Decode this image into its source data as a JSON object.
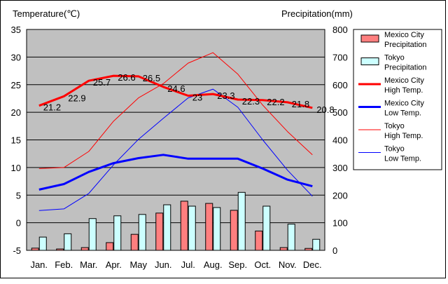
{
  "chart_data": {
    "type": "bar+line",
    "left_axis_title": "Temperature(℃)",
    "right_axis_title": "Precipitation(mm)",
    "categories": [
      "Jan.",
      "Feb.",
      "Mar.",
      "Apr.",
      "May",
      "Jun.",
      "Jul.",
      "Aug.",
      "Sep.",
      "Oct.",
      "Nov.",
      "Dec."
    ],
    "left_ylim": [
      -5,
      35
    ],
    "left_ticks": [
      "35",
      "30",
      "25",
      "20",
      "15",
      "10",
      "5",
      "0",
      "-5"
    ],
    "right_ylim": [
      0,
      800
    ],
    "right_ticks": [
      "800",
      "700",
      "600",
      "500",
      "400",
      "300",
      "200",
      "100",
      "0"
    ],
    "grid": true,
    "legend_position": "right",
    "bar_series": [
      {
        "name": "Mexico City Precipitation",
        "name_lines": [
          "Mexico City",
          "Precipitation"
        ],
        "color": "#ff7f7f",
        "values": [
          8,
          5,
          10,
          28,
          58,
          135,
          178,
          170,
          145,
          70,
          10,
          7
        ]
      },
      {
        "name": "Tokyo Precipitation",
        "name_lines": [
          "Tokyo",
          "Precipitation"
        ],
        "color": "#ccffff",
        "values": [
          48,
          60,
          115,
          125,
          130,
          165,
          160,
          155,
          210,
          160,
          95,
          40
        ]
      }
    ],
    "line_series": [
      {
        "name": "Mexico City High Temp.",
        "name_lines": [
          "Mexico City",
          "High Temp."
        ],
        "color": "#ff0000",
        "width": 3,
        "values": [
          21.2,
          22.9,
          25.7,
          26.6,
          26.5,
          24.6,
          23.0,
          23.3,
          22.3,
          22.2,
          21.8,
          20.8
        ],
        "labels": [
          "21.2",
          "22.9",
          "25.7",
          "26.6",
          "26.5",
          "24.6",
          "23",
          "23.3",
          "22.3",
          "22.2",
          "21.8",
          "20.8"
        ]
      },
      {
        "name": "Mexico City Low Temp.",
        "name_lines": [
          "Mexico City",
          "Low Temp."
        ],
        "color": "#0000ff",
        "width": 3,
        "values": [
          6.0,
          7.0,
          9.2,
          10.8,
          11.7,
          12.3,
          11.6,
          11.6,
          11.6,
          9.8,
          7.8,
          6.6
        ]
      },
      {
        "name": "Tokyo High Temp.",
        "name_lines": [
          "Tokyo",
          "High Temp."
        ],
        "color": "#ff0000",
        "width": 1,
        "values": [
          9.8,
          10.0,
          12.9,
          18.4,
          22.6,
          25.2,
          28.9,
          30.8,
          26.9,
          21.3,
          16.5,
          12.3
        ]
      },
      {
        "name": "Tokyo Low Temp.",
        "name_lines": [
          "Tokyo",
          "Low Temp."
        ],
        "color": "#0000ff",
        "width": 1,
        "values": [
          2.2,
          2.5,
          5.3,
          10.5,
          15.1,
          18.9,
          22.6,
          24.2,
          20.9,
          15.0,
          9.5,
          4.8
        ]
      }
    ]
  }
}
